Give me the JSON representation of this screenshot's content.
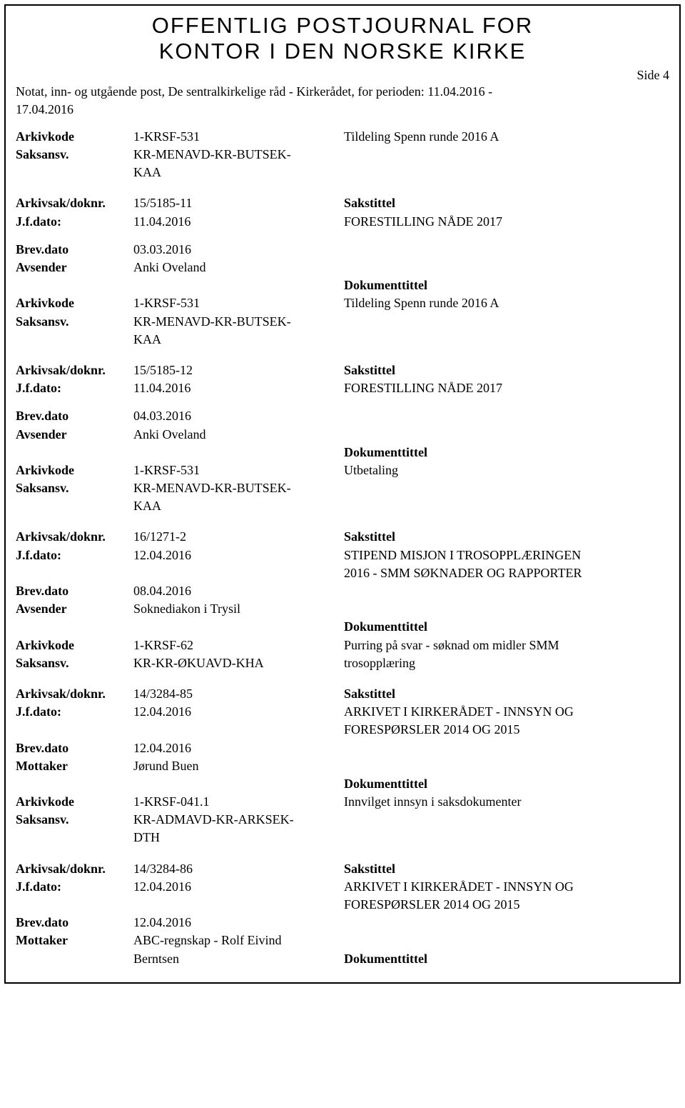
{
  "header": {
    "title_l1": "OFFENTLIG POSTJOURNAL FOR",
    "title_l2": "KONTOR I DEN NORSKE KIRKE",
    "page_label": "Side 4",
    "subhead_l1": "Notat, inn- og utgående post, De sentralkirkelige råd - Kirkerådet, for perioden: 11.04.2016 -",
    "subhead_l2": "17.04.2016"
  },
  "labels": {
    "arkivkode": "Arkivkode",
    "saksansv": "Saksansv.",
    "arkivsak": "Arkivsak/doknr.",
    "jfdato": "J.f.dato:",
    "brevdato": "Brev.dato",
    "avsender": "Avsender",
    "mottaker": "Mottaker",
    "sakstittel": "Sakstittel",
    "dokumenttittel": "Dokumenttittel"
  },
  "e0": {
    "arkivkode": "1-KRSF-531",
    "saksansv_l1": "KR-MENAVD-KR-BUTSEK-",
    "saksansv_l2": "KAA",
    "doktext": "Tildeling Spenn runde 2016 A"
  },
  "e1": {
    "arkivsak": "15/5185-11",
    "jfdato": "11.04.2016",
    "sakstittel": "FORESTILLING NÅDE 2017",
    "brevdato": "03.03.2016",
    "avsender": "Anki Oveland",
    "arkivkode": "1-KRSF-531",
    "saksansv_l1": "KR-MENAVD-KR-BUTSEK-",
    "saksansv_l2": "KAA",
    "doktext": "Tildeling Spenn runde 2016 A"
  },
  "e2": {
    "arkivsak": "15/5185-12",
    "jfdato": "11.04.2016",
    "sakstittel": "FORESTILLING NÅDE 2017",
    "brevdato": "04.03.2016",
    "avsender": "Anki Oveland",
    "arkivkode": "1-KRSF-531",
    "saksansv_l1": "KR-MENAVD-KR-BUTSEK-",
    "saksansv_l2": "KAA",
    "doktext": "Utbetaling"
  },
  "e3": {
    "arkivsak": "16/1271-2",
    "jfdato": "12.04.2016",
    "sakstittel_l1": "STIPEND MISJON I TROSOPPLÆRINGEN",
    "sakstittel_l2": "2016 - SMM SØKNADER OG RAPPORTER",
    "brevdato": "08.04.2016",
    "avsender": "Soknediakon i Trysil",
    "arkivkode": "1-KRSF-62",
    "saksansv": "KR-KR-ØKUAVD-KHA",
    "doktext_l1": "Purring på svar - søknad om midler SMM",
    "doktext_l2": "trosopplæring"
  },
  "e4": {
    "arkivsak": "14/3284-85",
    "jfdato": "12.04.2016",
    "sakstittel_l1": "ARKIVET I KIRKERÅDET - INNSYN OG",
    "sakstittel_l2": "FORESPØRSLER 2014 OG 2015",
    "brevdato": "12.04.2016",
    "mottaker": "Jørund Buen",
    "arkivkode": "1-KRSF-041.1",
    "saksansv_l1": "KR-ADMAVD-KR-ARKSEK-",
    "saksansv_l2": "DTH",
    "doktext": "Innvilget innsyn i saksdokumenter"
  },
  "e5": {
    "arkivsak": "14/3284-86",
    "jfdato": "12.04.2016",
    "sakstittel_l1": "ARKIVET I KIRKERÅDET - INNSYN OG",
    "sakstittel_l2": "FORESPØRSLER 2014 OG 2015",
    "brevdato": "12.04.2016",
    "mottaker_l1": "ABC-regnskap - Rolf Eivind",
    "mottaker_l2": "Berntsen"
  }
}
